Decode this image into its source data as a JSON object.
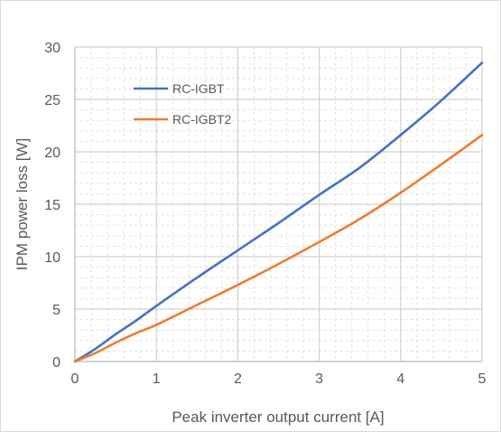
{
  "chart_data": {
    "type": "line",
    "title": "",
    "xlabel": "Peak inverter output current [A]",
    "ylabel": "IPM power loss [W]",
    "xlim": [
      0,
      5
    ],
    "ylim": [
      0,
      30
    ],
    "x_ticks": [
      "0",
      "1",
      "2",
      "3",
      "4",
      "5"
    ],
    "y_ticks": [
      "0",
      "5",
      "10",
      "15",
      "20",
      "25",
      "30"
    ],
    "grid": {
      "major": true,
      "minor": true
    },
    "legend": "top-left inside plot",
    "series": [
      {
        "name": "RC-IGBT",
        "color": "#4472C4",
        "x": [
          0,
          0.25,
          0.5,
          0.75,
          1,
          1.5,
          2,
          2.5,
          3,
          3.5,
          4,
          4.5,
          5
        ],
        "y": [
          0,
          1.2,
          2.6,
          3.9,
          5.3,
          8.0,
          10.6,
          13.2,
          15.9,
          18.5,
          21.6,
          24.9,
          28.5
        ]
      },
      {
        "name": "RC-IGBT2",
        "color": "#ED7D31",
        "x": [
          0,
          0.25,
          0.5,
          0.75,
          1,
          1.5,
          2,
          2.5,
          3,
          3.5,
          4,
          4.5,
          5
        ],
        "y": [
          0,
          0.8,
          1.8,
          2.7,
          3.5,
          5.4,
          7.3,
          9.3,
          11.4,
          13.6,
          16.1,
          18.8,
          21.6
        ]
      }
    ]
  }
}
